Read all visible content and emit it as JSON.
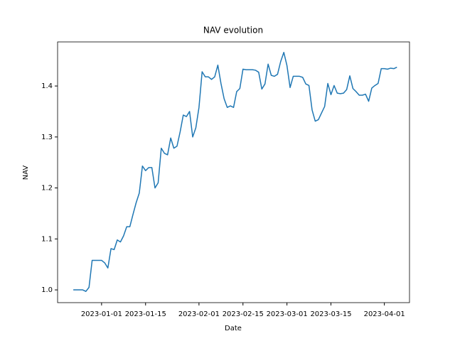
{
  "chart_data": {
    "type": "line",
    "title": "NAV evolution",
    "x_label": "Date",
    "y_label": "NAV",
    "x": [
      "2022-12-23",
      "2022-12-26",
      "2022-12-27",
      "2022-12-28",
      "2022-12-29",
      "2023-01-01",
      "2023-01-02",
      "2023-01-03",
      "2023-01-04",
      "2023-01-05",
      "2023-01-06",
      "2023-01-07",
      "2023-01-08",
      "2023-01-09",
      "2023-01-10",
      "2023-01-11",
      "2023-01-12",
      "2023-01-13",
      "2023-01-14",
      "2023-01-15",
      "2023-01-16",
      "2023-01-17",
      "2023-01-18",
      "2023-01-19",
      "2023-01-20",
      "2023-01-21",
      "2023-01-22",
      "2023-01-23",
      "2023-01-24",
      "2023-01-25",
      "2023-01-26",
      "2023-01-27",
      "2023-01-28",
      "2023-01-29",
      "2023-01-30",
      "2023-01-31",
      "2023-02-01",
      "2023-02-02",
      "2023-02-03",
      "2023-02-04",
      "2023-02-05",
      "2023-02-06",
      "2023-02-07",
      "2023-02-08",
      "2023-02-09",
      "2023-02-10",
      "2023-02-11",
      "2023-02-12",
      "2023-02-13",
      "2023-02-14",
      "2023-02-15",
      "2023-02-16",
      "2023-02-17",
      "2023-02-18",
      "2023-02-19",
      "2023-02-20",
      "2023-02-21",
      "2023-02-22",
      "2023-02-23",
      "2023-02-24",
      "2023-02-25",
      "2023-02-26",
      "2023-02-27",
      "2023-02-28",
      "2023-03-01",
      "2023-03-02",
      "2023-03-03",
      "2023-03-04",
      "2023-03-05",
      "2023-03-06",
      "2023-03-07",
      "2023-03-08",
      "2023-03-09",
      "2023-03-10",
      "2023-03-11",
      "2023-03-12",
      "2023-03-13",
      "2023-03-14",
      "2023-03-15",
      "2023-03-16",
      "2023-03-17",
      "2023-03-18",
      "2023-03-19",
      "2023-03-20",
      "2023-03-21",
      "2023-03-22",
      "2023-03-23",
      "2023-03-24",
      "2023-03-25",
      "2023-03-26",
      "2023-03-27",
      "2023-03-28",
      "2023-03-29",
      "2023-03-30",
      "2023-03-31",
      "2023-04-01",
      "2023-04-02",
      "2023-04-03",
      "2023-04-04",
      "2023-04-05"
    ],
    "series": [
      {
        "name": "NAV",
        "color": "#1f77b4",
        "values": [
          1.0,
          1.0,
          0.997,
          1.005,
          1.058,
          1.058,
          1.053,
          1.043,
          1.081,
          1.079,
          1.098,
          1.094,
          1.106,
          1.124,
          1.124,
          1.148,
          1.171,
          1.19,
          1.243,
          1.234,
          1.24,
          1.24,
          1.2,
          1.21,
          1.278,
          1.268,
          1.265,
          1.298,
          1.278,
          1.282,
          1.31,
          1.343,
          1.34,
          1.35,
          1.3,
          1.318,
          1.358,
          1.428,
          1.418,
          1.418,
          1.413,
          1.418,
          1.441,
          1.405,
          1.375,
          1.358,
          1.361,
          1.358,
          1.389,
          1.395,
          1.433,
          1.432,
          1.432,
          1.432,
          1.431,
          1.427,
          1.394,
          1.404,
          1.443,
          1.421,
          1.419,
          1.423,
          1.448,
          1.466,
          1.44,
          1.397,
          1.419,
          1.419,
          1.419,
          1.417,
          1.404,
          1.401,
          1.353,
          1.331,
          1.334,
          1.347,
          1.36,
          1.405,
          1.383,
          1.401,
          1.386,
          1.385,
          1.386,
          1.393,
          1.42,
          1.395,
          1.389,
          1.382,
          1.382,
          1.384,
          1.37,
          1.396,
          1.401,
          1.405,
          1.434,
          1.434,
          1.433,
          1.435,
          1.434,
          1.437
        ]
      }
    ],
    "xlim": [
      "2022-12-18",
      "2023-04-09"
    ],
    "xticks": [
      "2023-01-01",
      "2023-01-15",
      "2023-02-01",
      "2023-02-15",
      "2023-03-01",
      "2023-03-15",
      "2023-04-01"
    ],
    "ylim": [
      0.975,
      1.4865
    ],
    "yticks": [
      {
        "value": 1.0,
        "label": "1.0"
      },
      {
        "value": 1.1,
        "label": "1.1"
      },
      {
        "value": 1.2,
        "label": "1.2"
      },
      {
        "value": 1.3,
        "label": "1.3"
      },
      {
        "value": 1.4,
        "label": "1.4"
      }
    ],
    "grid": false
  }
}
